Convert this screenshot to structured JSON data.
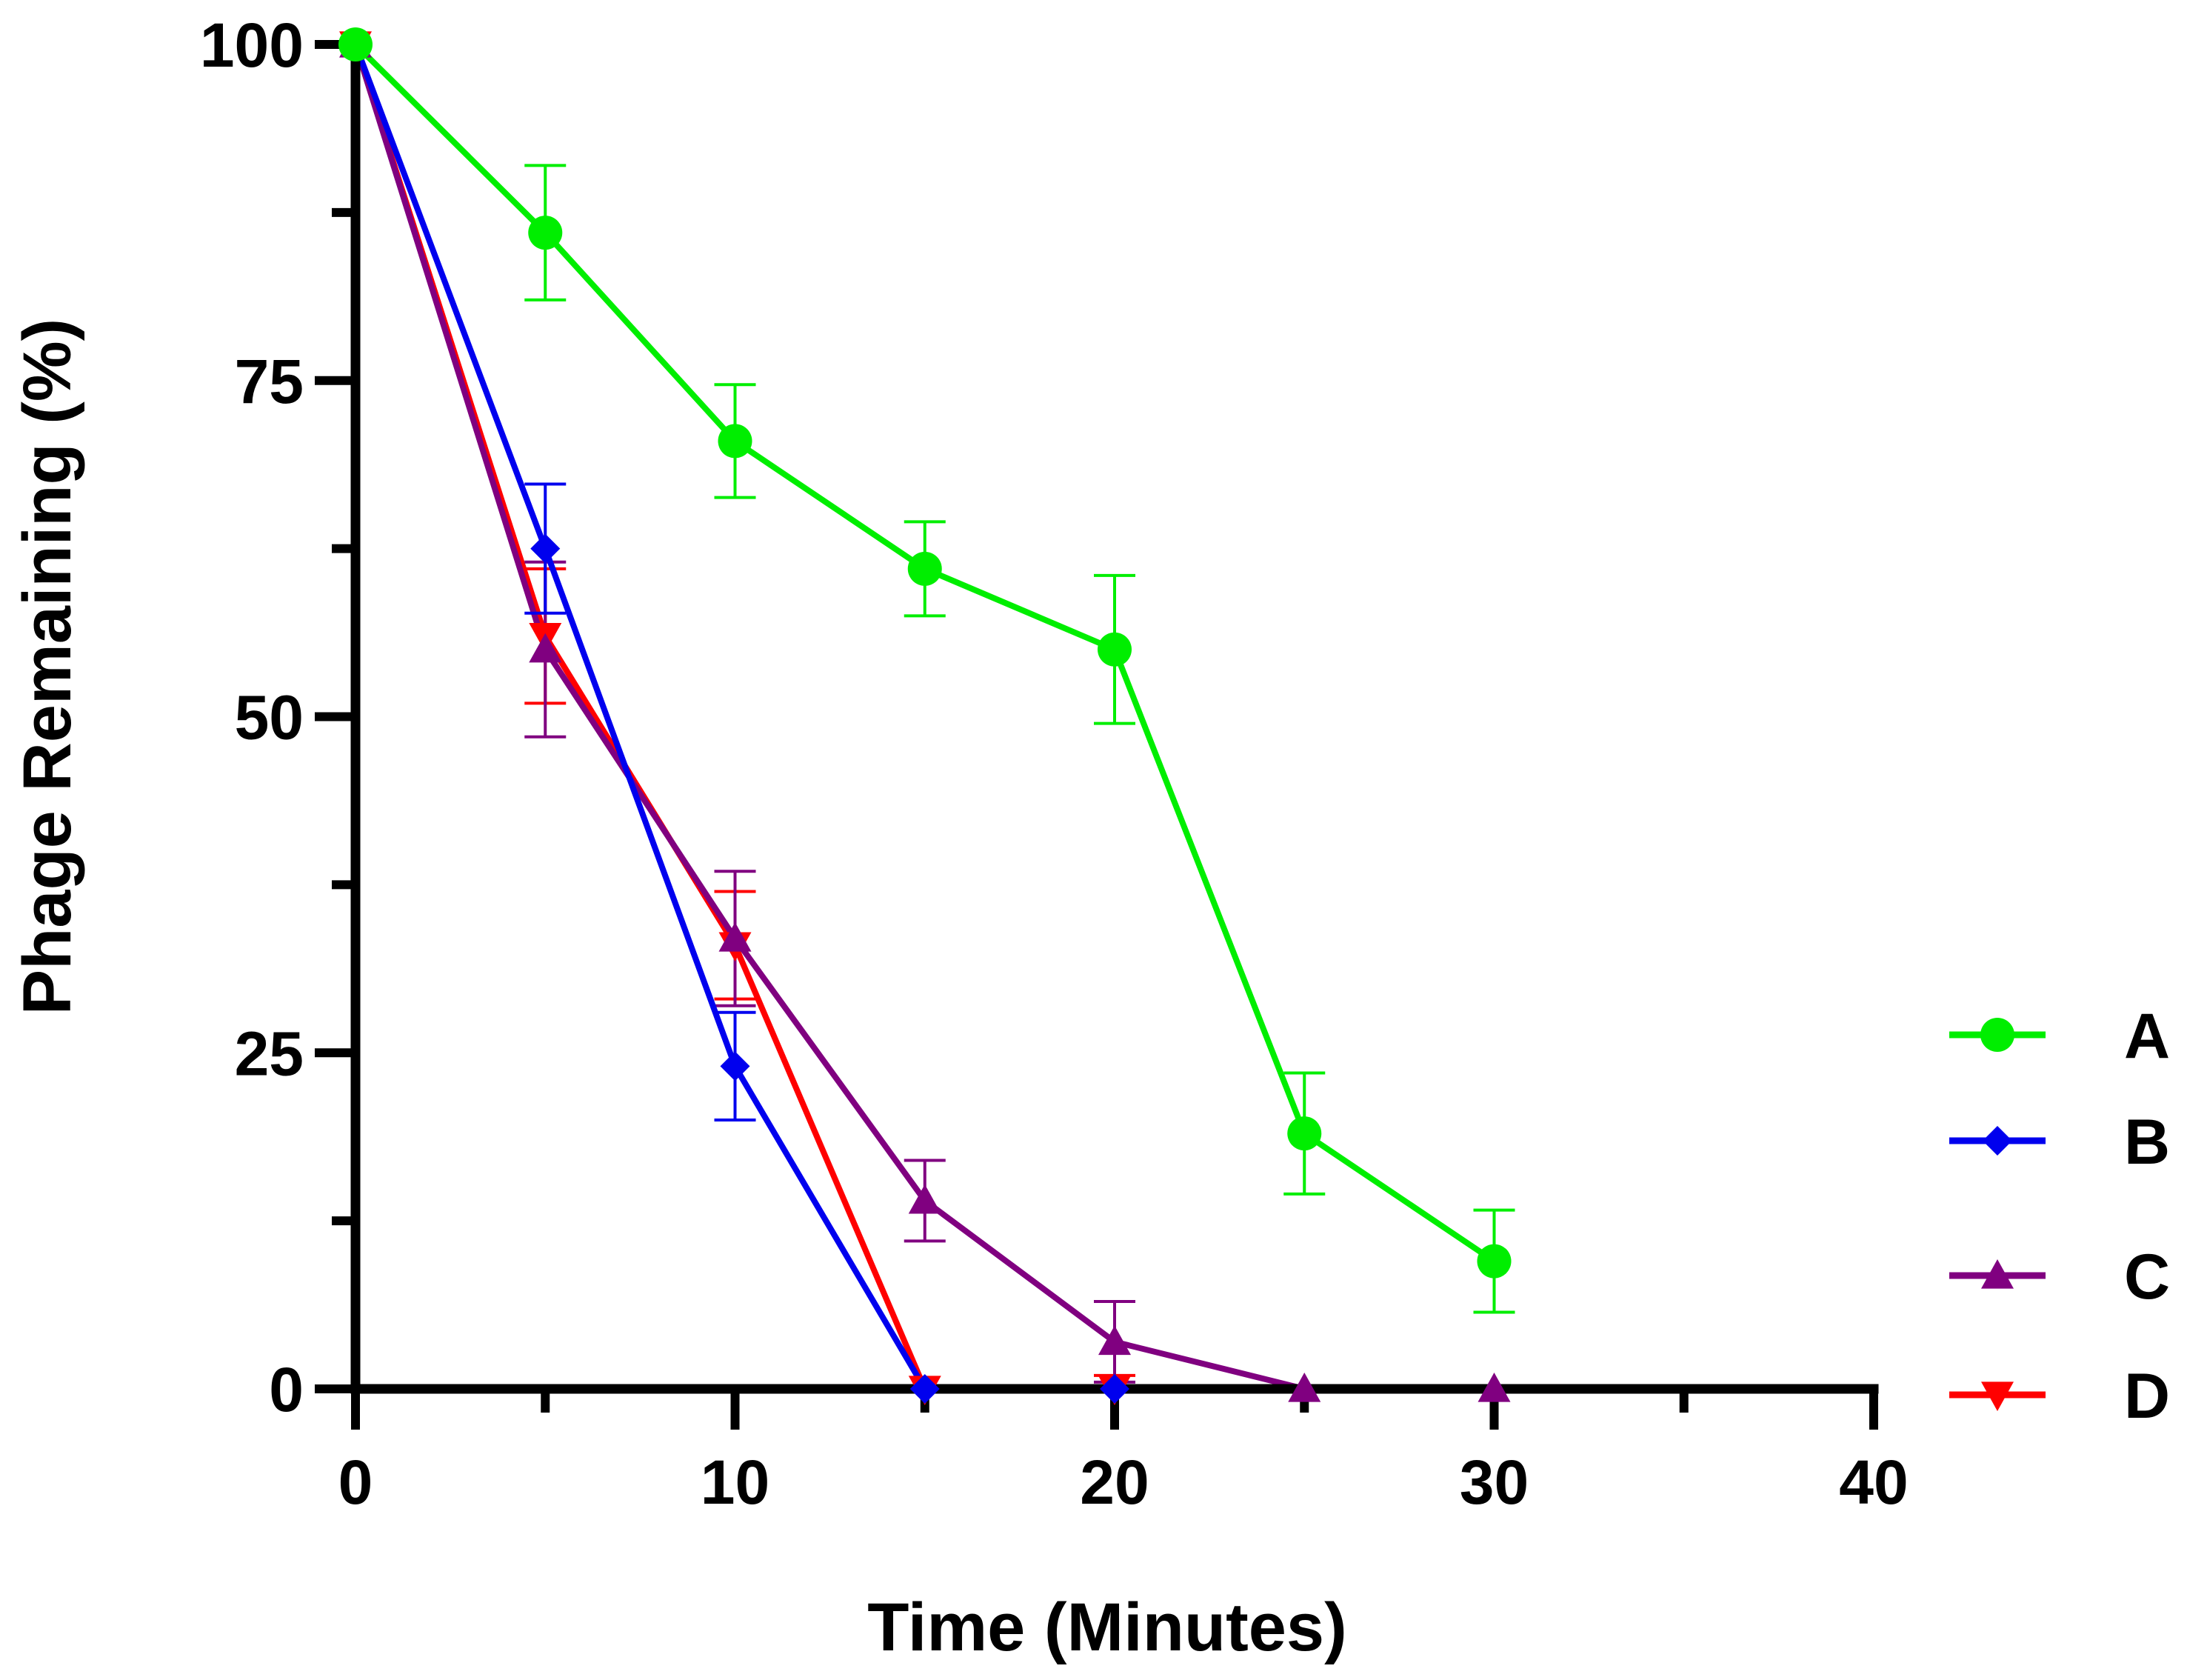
{
  "chart_data": {
    "type": "line",
    "title": "",
    "xlabel": "Time (Minutes)",
    "ylabel": "Phage Remaining (%)",
    "xlim": [
      0,
      40
    ],
    "ylim": [
      0,
      100
    ],
    "x_ticks": [
      0,
      10,
      20,
      30,
      40
    ],
    "x_tick_labels": [
      "0",
      "10",
      "20",
      "30",
      "40"
    ],
    "x_minor_ticks": [
      5,
      15,
      25,
      35
    ],
    "y_ticks": [
      0,
      25,
      50,
      75,
      100
    ],
    "y_tick_labels": [
      "0",
      "25",
      "50",
      "75",
      "100"
    ],
    "y_minor_ticks": [
      12.5,
      37.5,
      62.5,
      87.5
    ],
    "grid": false,
    "legend_position": "right",
    "series": [
      {
        "name": "A",
        "color": "#00ee00",
        "marker": "circle",
        "x": [
          0,
          5,
          10,
          15,
          20,
          25,
          30
        ],
        "y": [
          100,
          86,
          70.5,
          61,
          55,
          19,
          9.5
        ],
        "err": [
          0,
          5,
          4.2,
          3.5,
          5.5,
          4.5,
          3.8
        ]
      },
      {
        "name": "B",
        "color": "#0000ee",
        "marker": "diamond",
        "x": [
          0,
          5,
          10,
          15,
          20
        ],
        "y": [
          100,
          62.5,
          24,
          0,
          0
        ],
        "err": [
          0,
          4.8,
          4,
          0,
          0
        ]
      },
      {
        "name": "C",
        "color": "#800080",
        "marker": "triangle-up",
        "x": [
          0,
          5,
          10,
          15,
          20,
          25,
          30
        ],
        "y": [
          100,
          55,
          33.5,
          14,
          3.5,
          0,
          0
        ],
        "err": [
          0,
          6.5,
          5,
          3,
          3,
          0,
          0
        ]
      },
      {
        "name": "D",
        "color": "#ff0000",
        "marker": "triangle-down",
        "x": [
          0,
          5,
          10,
          15,
          20
        ],
        "y": [
          100,
          56,
          33,
          0,
          0
        ],
        "err": [
          0,
          5,
          4,
          0,
          1
        ]
      }
    ]
  }
}
